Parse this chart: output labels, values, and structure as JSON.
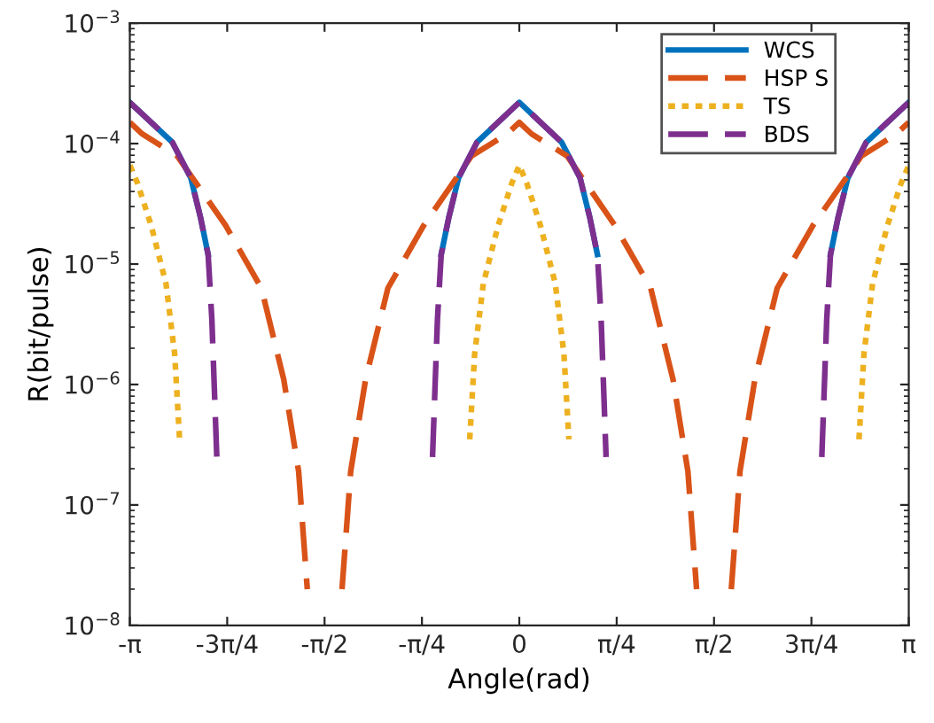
{
  "chart_data": {
    "type": "line",
    "xlabel": "Angle(rad)",
    "ylabel": "R(bit/pulse)",
    "log": "y",
    "legend": "top right",
    "grid": false,
    "xlim": [
      -3.1416,
      3.1416
    ],
    "xticks": [
      {
        "value": -3.1416,
        "label": "-π"
      },
      {
        "value": -2.3562,
        "label": "-3π/4"
      },
      {
        "value": -1.5708,
        "label": "-π/2"
      },
      {
        "value": -0.7854,
        "label": "-π/4"
      },
      0,
      {
        "value": 0.7854,
        "label": "π/4"
      },
      {
        "value": 1.5708,
        "label": "π/2"
      },
      {
        "value": 2.3562,
        "label": "3π/4"
      },
      {
        "value": 3.1416,
        "label": "π"
      }
    ],
    "ylim": [
      1e-08,
      0.001
    ],
    "yticks": [
      {
        "value": 1e-08,
        "label": "10$^{−8}$"
      },
      {
        "value": 1e-07,
        "label": "10$^{−7}$"
      },
      {
        "value": 1e-06,
        "label": "10$^{−6}$"
      },
      {
        "value": 1e-05,
        "label": "10$^{−5}$"
      },
      {
        "value": 0.0001,
        "label": "10$^{−4}$"
      },
      {
        "value": 0.001,
        "label": "10$^{−3}$"
      }
    ],
    "series": [
      {
        "name": "WCS",
        "color": "#0072bd",
        "line_style": "solid",
        "x": [
          -3.1416,
          -2.8,
          -2.65,
          -2.57,
          -2.51,
          -1.57,
          -0.63,
          -0.57,
          -0.49,
          -0.34,
          0,
          0.34,
          0.49,
          0.57,
          0.63,
          1.57,
          2.51,
          2.57,
          2.65,
          2.8,
          3.1416
        ],
        "values": [
          0.00022,
          0.000103,
          5.2e-05,
          2.4e-05,
          1.2e-05,
          null,
          1.2e-05,
          2.4e-05,
          5.2e-05,
          0.000103,
          0.00022,
          0.000103,
          5.2e-05,
          2.4e-05,
          1.2e-05,
          null,
          1.2e-05,
          2.4e-05,
          5.2e-05,
          0.000103,
          0.00022
        ]
      },
      {
        "name": "HSP S",
        "color": "#d95319",
        "line_style": "dashed",
        "x": [
          -3.1416,
          -3.04,
          -2.76,
          -2.37,
          -2.08,
          -1.9,
          -1.78,
          -1.71,
          -1.57,
          -1.43,
          -1.36,
          -1.24,
          -1.06,
          -0.77,
          -0.385,
          -0.1,
          0,
          0.1,
          0.385,
          0.77,
          1.06,
          1.24,
          1.36,
          1.43,
          1.57,
          1.71,
          1.78,
          1.9,
          2.08,
          2.37,
          2.76,
          3.04,
          3.1416
        ],
        "values": [
          0.00015,
          0.00012,
          7.9e-05,
          2.1e-05,
          6.3e-06,
          1.1e-06,
          1.9e-07,
          2e-08,
          null,
          2e-08,
          1.9e-07,
          1.1e-06,
          6.3e-06,
          2.1e-05,
          7.9e-05,
          0.00012,
          0.00015,
          0.00012,
          7.9e-05,
          2.1e-05,
          6.3e-06,
          1.1e-06,
          1.9e-07,
          2e-08,
          null,
          2e-08,
          1.9e-07,
          1.1e-06,
          6.3e-06,
          2.1e-05,
          7.9e-05,
          0.00012,
          0.00015
        ]
      },
      {
        "name": "TS",
        "color": "#edb120",
        "line_style": "dotted",
        "x": [
          -3.1416,
          -3.08,
          -2.97,
          -2.85,
          -2.78,
          -2.74,
          -1.57,
          -0.4,
          -0.36,
          -0.29,
          -0.17,
          -0.06,
          0,
          0.06,
          0.17,
          0.29,
          0.36,
          0.4,
          1.57,
          2.74,
          2.78,
          2.85,
          2.97,
          3.08,
          3.1416
        ],
        "values": [
          6.6e-05,
          4.7e-05,
          2.1e-05,
          6.9e-06,
          1.8e-06,
          3.5e-07,
          null,
          3.5e-07,
          1.8e-06,
          6.9e-06,
          2.1e-05,
          4.7e-05,
          6.6e-05,
          4.7e-05,
          2.1e-05,
          6.9e-06,
          1.8e-06,
          3.5e-07,
          null,
          3.5e-07,
          1.8e-06,
          6.9e-06,
          2.1e-05,
          4.7e-05,
          6.6e-05
        ]
      },
      {
        "name": "BDS",
        "color": "#7e2f8e",
        "line_style": "dashed",
        "x": [
          -3.1416,
          -2.8,
          -2.65,
          -2.57,
          -2.51,
          -2.48,
          -2.44,
          -1.57,
          -0.7,
          -0.66,
          -0.63,
          -0.57,
          -0.49,
          -0.34,
          0,
          0.34,
          0.49,
          0.57,
          0.63,
          0.66,
          0.7,
          1.57,
          2.44,
          2.48,
          2.51,
          2.57,
          2.65,
          2.8,
          3.1416
        ],
        "values": [
          0.00022,
          0.000103,
          5.2e-05,
          2.4e-05,
          1.2e-05,
          3.5e-06,
          2.5e-07,
          null,
          2.5e-07,
          3.5e-06,
          1.2e-05,
          2.4e-05,
          5.2e-05,
          0.000103,
          0.00022,
          0.000103,
          5.2e-05,
          2.4e-05,
          1.2e-05,
          3.5e-06,
          2.5e-07,
          null,
          2.5e-07,
          3.5e-06,
          1.2e-05,
          2.4e-05,
          5.2e-05,
          0.000103,
          0.00022
        ]
      }
    ]
  }
}
